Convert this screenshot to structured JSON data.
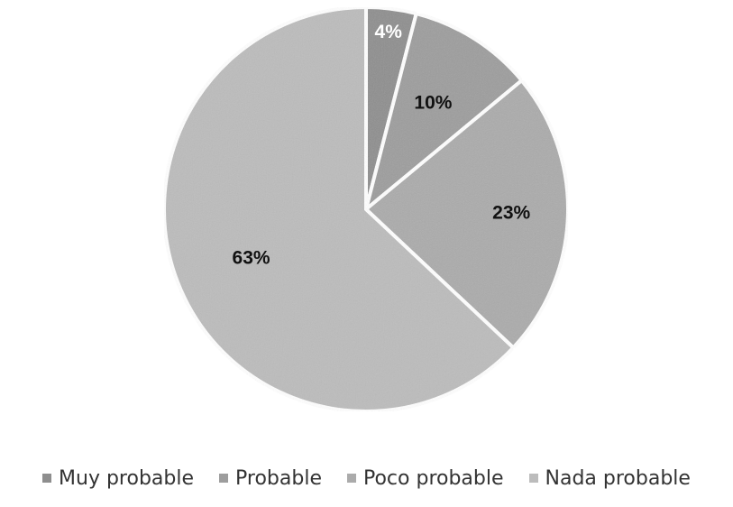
{
  "chart_data": {
    "type": "pie",
    "title": "",
    "categories": [
      "Muy probable",
      "Probable",
      "Poco probable",
      "Nada probable"
    ],
    "values": [
      4,
      10,
      23,
      63
    ],
    "data_labels": [
      "4%",
      "10%",
      "23%",
      "63%"
    ],
    "colors": [
      "#8e8e8e",
      "#9d9d9d",
      "#ababab",
      "#bcbcbc"
    ],
    "label_colors": [
      "#ffffff",
      "#111111",
      "#111111",
      "#111111"
    ],
    "start_angle_deg": 0,
    "direction": "clockwise",
    "legend_position": "bottom"
  }
}
